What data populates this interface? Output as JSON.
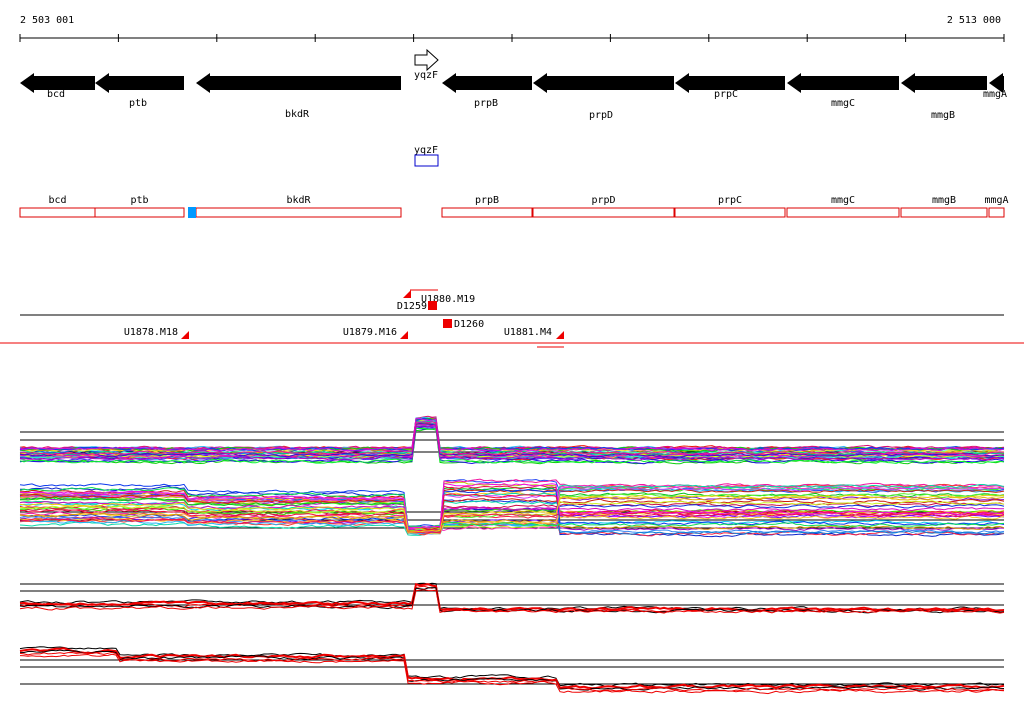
{
  "ruler": {
    "start": "2 503 001",
    "end": "2 513 000"
  },
  "genes": {
    "names": [
      "bcd",
      "ptb",
      "bkdR",
      "yqzF",
      "prpB",
      "prpD",
      "prpC",
      "mmgC",
      "mmgB",
      "mmgA"
    ]
  },
  "transcripts": {
    "single": "yqzF",
    "names": [
      "bcd",
      "ptb",
      "bkdR",
      "prpB",
      "prpD",
      "prpC",
      "mmgC",
      "mmgB",
      "mmgA"
    ]
  },
  "regulatory": {
    "labels": [
      "U1880.M19",
      "D1259",
      "D1260",
      "U1878.M18",
      "U1879.M16",
      "U1881.M4"
    ]
  }
}
